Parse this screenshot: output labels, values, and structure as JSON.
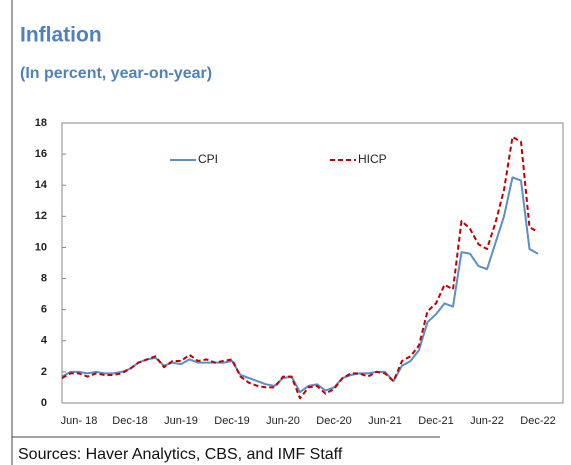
{
  "chart_data": {
    "type": "line",
    "title": "Inflation",
    "subtitle": "(In percent, year-on-year)",
    "source": "Sources: Haver Analytics, CBS, and IMF Staff",
    "categories": [
      null,
      null,
      "Jun- 18",
      null,
      null,
      null,
      null,
      null,
      "Dec-18",
      null,
      null,
      null,
      null,
      null,
      "Jun-19",
      null,
      null,
      null,
      null,
      null,
      "Dec-19",
      null,
      null,
      null,
      null,
      null,
      "Jun-20",
      null,
      null,
      null,
      null,
      null,
      "Dec-20",
      null,
      null,
      null,
      null,
      null,
      "Jun-21",
      null,
      null,
      null,
      null,
      null,
      "Dec-21",
      null,
      null,
      null,
      null,
      null,
      "Jun-22",
      null,
      null,
      null,
      null,
      null,
      "Dec-22"
    ],
    "series": [
      {
        "name": "CPI",
        "color": "#5b8fc7",
        "dashed": false,
        "values": [
          1.7,
          2.0,
          2.0,
          1.9,
          2.0,
          1.9,
          1.9,
          2.0,
          2.2,
          2.6,
          2.8,
          2.9,
          2.4,
          2.6,
          2.5,
          2.8,
          2.6,
          2.6,
          2.6,
          2.6,
          2.7,
          1.8,
          1.6,
          1.4,
          1.2,
          1.1,
          1.6,
          1.7,
          0.7,
          1.1,
          1.2,
          0.8,
          1.0,
          1.6,
          1.8,
          1.9,
          1.9,
          2.0,
          2.0,
          1.4,
          2.4,
          2.7,
          3.4,
          5.2,
          5.7,
          6.4,
          6.2,
          9.7,
          9.6,
          8.8,
          8.6,
          10.3,
          12.0,
          14.5,
          14.3,
          9.9,
          9.6
        ]
      },
      {
        "name": "HICP",
        "color": "#c00000",
        "dashed": true,
        "values": [
          1.6,
          1.9,
          1.9,
          1.7,
          1.9,
          1.8,
          1.8,
          1.9,
          2.2,
          2.6,
          2.8,
          3.0,
          2.3,
          2.7,
          2.7,
          3.1,
          2.7,
          2.8,
          2.6,
          2.7,
          2.8,
          1.7,
          1.3,
          1.1,
          1.0,
          1.0,
          1.7,
          1.7,
          0.3,
          1.0,
          1.1,
          0.6,
          0.9,
          1.6,
          1.9,
          1.9,
          1.7,
          2.0,
          1.9,
          1.4,
          2.7,
          3.0,
          3.7,
          5.9,
          6.4,
          7.6,
          7.3,
          11.7,
          11.2,
          10.2,
          9.9,
          11.6,
          13.7,
          17.1,
          16.8,
          11.3,
          11.0
        ]
      }
    ],
    "ylim": [
      0,
      18
    ],
    "yticks": [
      0,
      2,
      4,
      6,
      8,
      10,
      12,
      14,
      16,
      18
    ],
    "grid": false
  }
}
